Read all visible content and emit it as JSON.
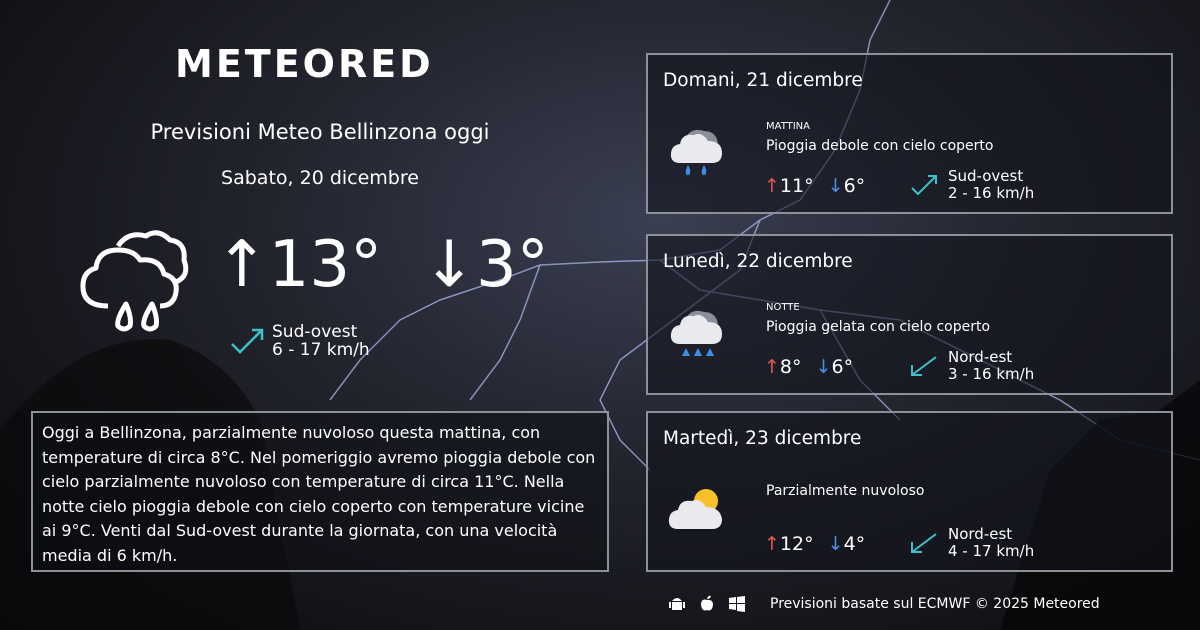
{
  "brand": "METEORED",
  "header": {
    "title": "Previsioni Meteo Bellinzona oggi",
    "date": "Sabato, 20 dicembre"
  },
  "today": {
    "icon": "rain-cloud-icon",
    "max": "13°",
    "min": "3°",
    "wind_dir": "Sud-ovest",
    "wind_speed": "6 - 17 km/h"
  },
  "description": "Oggi a Bellinzona, parzialmente nuvoloso questa mattina, con temperature di circa 8°C. Nel pomeriggio avremo pioggia debole con cielo parzialmente nuvoloso con temperature di circa 11°C. Nella notte cielo pioggia debole con cielo coperto  con temperature vicine ai 9°C. Venti dal Sud-ovest durante la giornata, con una velocità media di 6 km/h.",
  "forecast": [
    {
      "day": "Domani, 21 dicembre",
      "period": "MATTINA",
      "condition": "Pioggia debole con cielo coperto",
      "max": "11°",
      "min": "6°",
      "wind_dir": "Sud-ovest",
      "wind_speed": "2 - 16 km/h",
      "icon": "rain-cloud-icon"
    },
    {
      "day": "Lunedì, 22 dicembre",
      "period": "NOTTE",
      "condition": "Pioggia gelata con cielo coperto",
      "max": "8°",
      "min": "6°",
      "wind_dir": "Nord-est",
      "wind_speed": "3 - 16 km/h",
      "icon": "freezing-rain-icon"
    },
    {
      "day": "Martedì, 23 dicembre",
      "period": "",
      "condition": "Parzialmente nuvoloso",
      "max": "12°",
      "min": "4°",
      "wind_dir": "Nord-est",
      "wind_speed": "4 - 17 km/h",
      "icon": "partly-cloudy-icon"
    }
  ],
  "footer": {
    "text": "Previsioni basate sul ECMWF © 2025 Meteored",
    "apps": [
      "android-icon",
      "apple-icon",
      "windows-icon"
    ]
  },
  "colors": {
    "up": "#e8544e",
    "down": "#4a90e2",
    "wind": "#3fc1c9"
  }
}
